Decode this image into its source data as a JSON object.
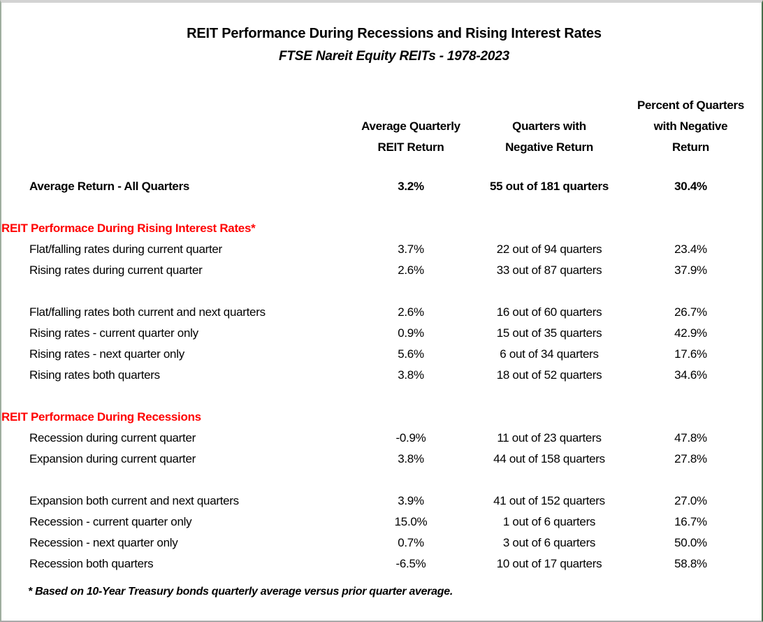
{
  "page": {
    "title": "REIT Performance During Recessions and Rising Interest Rates",
    "subtitle": "FTSE Nareit Equity REITs - 1978-2023",
    "footnote": "* Based on 10-Year Treasury bonds quarterly average versus prior quarter average.",
    "colors": {
      "section_header_text": "#FF0000",
      "body_text": "#000000",
      "top_edge": "#D3D3D3",
      "left_edge": "#9FAE9F",
      "right_edge": "#47704D",
      "bottom_edge": "#A9A9A9"
    }
  },
  "table": {
    "columns": [
      {
        "label": ""
      },
      {
        "label": "Average Quarterly\nREIT Return"
      },
      {
        "label": "Quarters with\nNegative Return"
      },
      {
        "label": "Percent of Quarters\nwith Negative\nReturn"
      }
    ],
    "rows": [
      {
        "type": "data",
        "bold": true,
        "label": "Average Return - All Quarters",
        "avg_return": "3.2%",
        "negative_quarters": "55 out of 181 quarters",
        "pct_negative": "30.4%"
      },
      {
        "type": "spacer"
      },
      {
        "type": "section",
        "label": "REIT Performace During Rising Interest Rates*"
      },
      {
        "type": "data",
        "bold": false,
        "label": "Flat/falling rates during current quarter",
        "avg_return": "3.7%",
        "negative_quarters": "22 out of 94 quarters",
        "pct_negative": "23.4%"
      },
      {
        "type": "data",
        "bold": false,
        "label": "Rising rates during current quarter",
        "avg_return": "2.6%",
        "negative_quarters": "33 out of 87 quarters",
        "pct_negative": "37.9%"
      },
      {
        "type": "spacer"
      },
      {
        "type": "data",
        "bold": false,
        "label": "Flat/falling rates both current and next quarters",
        "avg_return": "2.6%",
        "negative_quarters": "16 out of 60 quarters",
        "pct_negative": "26.7%"
      },
      {
        "type": "data",
        "bold": false,
        "label": "Rising rates - current quarter only",
        "avg_return": "0.9%",
        "negative_quarters": "15 out of 35 quarters",
        "pct_negative": "42.9%"
      },
      {
        "type": "data",
        "bold": false,
        "label": "Rising rates - next quarter only",
        "avg_return": "5.6%",
        "negative_quarters": "6 out of 34 quarters",
        "pct_negative": "17.6%"
      },
      {
        "type": "data",
        "bold": false,
        "label": "Rising rates both quarters",
        "avg_return": "3.8%",
        "negative_quarters": "18 out of 52 quarters",
        "pct_negative": "34.6%"
      },
      {
        "type": "spacer"
      },
      {
        "type": "section",
        "label": "REIT Performace During Recessions"
      },
      {
        "type": "data",
        "bold": false,
        "label": "Recession during current quarter",
        "avg_return": "-0.9%",
        "negative_quarters": "11 out of 23 quarters",
        "pct_negative": "47.8%"
      },
      {
        "type": "data",
        "bold": false,
        "label": "Expansion during current quarter",
        "avg_return": "3.8%",
        "negative_quarters": "44 out of 158 quarters",
        "pct_negative": "27.8%"
      },
      {
        "type": "spacer"
      },
      {
        "type": "data",
        "bold": false,
        "label": "Expansion both current and next quarters",
        "avg_return": "3.9%",
        "negative_quarters": "41 out of 152 quarters",
        "pct_negative": "27.0%"
      },
      {
        "type": "data",
        "bold": false,
        "label": "Recession - current quarter only",
        "avg_return": "15.0%",
        "negative_quarters": "1 out of 6 quarters",
        "pct_negative": "16.7%"
      },
      {
        "type": "data",
        "bold": false,
        "label": "Recession - next quarter only",
        "avg_return": "0.7%",
        "negative_quarters": "3 out of 6 quarters",
        "pct_negative": "50.0%"
      },
      {
        "type": "data",
        "bold": false,
        "label": "Recession both quarters",
        "avg_return": "-6.5%",
        "negative_quarters": "10 out of 17 quarters",
        "pct_negative": "58.8%"
      }
    ]
  }
}
